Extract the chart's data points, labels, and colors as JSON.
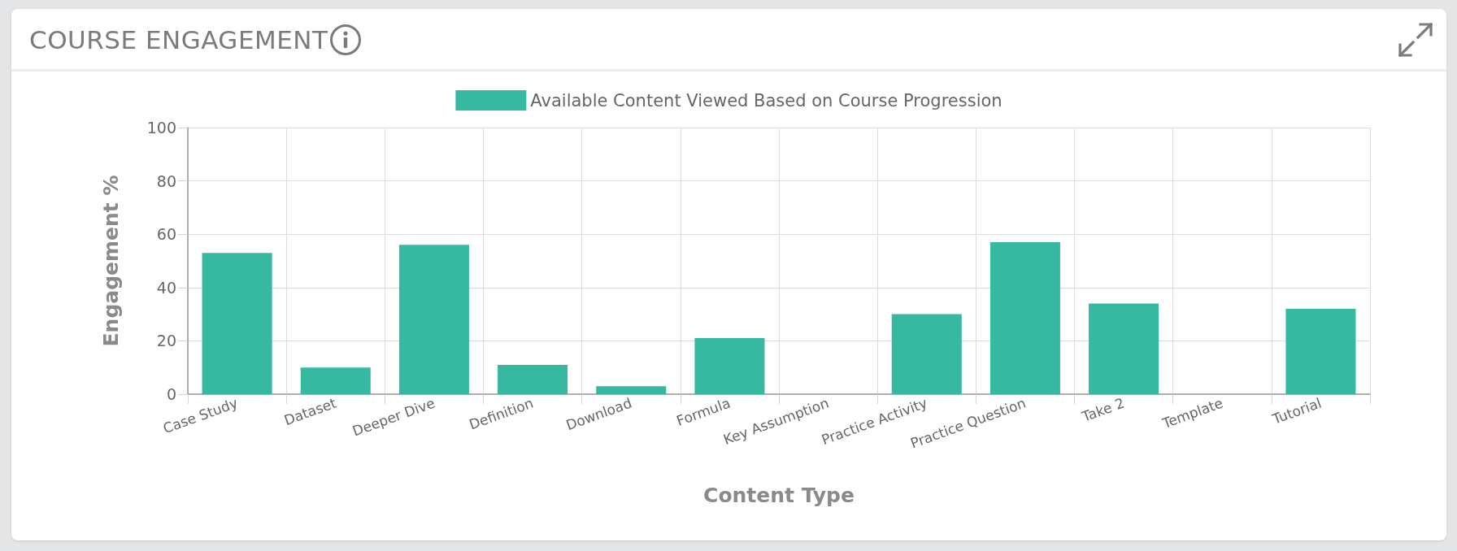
{
  "chart_data": {
    "type": "bar",
    "title": "COURSE ENGAGEMENT",
    "categories": [
      "Case Study",
      "Dataset",
      "Deeper Dive",
      "Definition",
      "Download",
      "Formula",
      "Key Assumption",
      "Practice Activity",
      "Practice Question",
      "Take 2",
      "Template",
      "Tutorial"
    ],
    "series": [
      {
        "name": "Available Content Viewed Based on Course Progression",
        "color": "#36b9a0",
        "values": [
          53,
          10,
          56,
          11,
          3,
          21,
          0,
          30,
          57,
          34,
          0,
          32
        ]
      }
    ],
    "xlabel": "Content Type",
    "ylabel": "Engagement %",
    "ylim": [
      0,
      100
    ],
    "yticks": [
      0,
      20,
      40,
      60,
      80,
      100
    ],
    "grid": true,
    "legend": "top"
  }
}
